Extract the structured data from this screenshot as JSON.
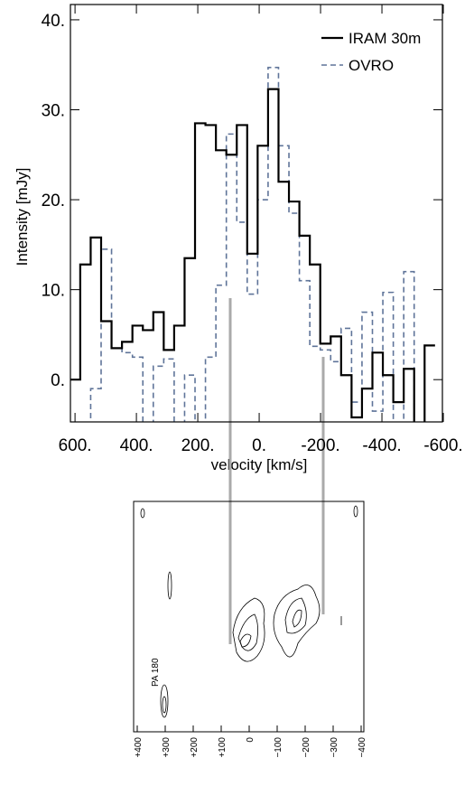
{
  "chart_data": {
    "type": "step",
    "xlabel": "velocity [km/s]",
    "ylabel": "Intensity [mJy]",
    "x": [
      600,
      566,
      532,
      498,
      464,
      430,
      396,
      362,
      328,
      294,
      260,
      226,
      192,
      158,
      124,
      90,
      56,
      22,
      -12,
      -46,
      -80,
      -114,
      -148,
      -182,
      -216,
      -250,
      -284,
      -318,
      -352,
      -386,
      -420,
      -454,
      -488,
      -522,
      -556
    ],
    "series": [
      {
        "name": "IRAM 30m",
        "color": "#000000",
        "dash": false,
        "values": [
          0,
          12.8,
          15.8,
          6.5,
          3.5,
          4.2,
          6,
          5.5,
          7.5,
          3.3,
          6,
          13.5,
          28.5,
          28.3,
          25.5,
          25,
          28.3,
          14,
          26,
          32.3,
          22,
          19.8,
          16,
          12.8,
          4,
          4.8,
          0.5,
          -4.2,
          -1,
          3,
          0.5,
          -2.5,
          1.2,
          -5,
          3.8
        ]
      },
      {
        "name": "OVRO",
        "color": "#5f7499",
        "dash": true,
        "values": [
          -8,
          -5,
          -1,
          14.5,
          3.5,
          3,
          2.5,
          -5,
          1.5,
          2.3,
          -5,
          0.5,
          -5,
          2.5,
          10.5,
          27.3,
          17.5,
          9.5,
          20,
          34.7,
          26,
          18.5,
          11,
          3.7,
          3.3,
          2,
          5.7,
          -2.5,
          7.5,
          -3.5,
          9.7,
          -5,
          12,
          -5,
          null
        ]
      }
    ],
    "xlim": [
      615,
      -597
    ],
    "ylim": [
      -4.7,
      41.7
    ],
    "xticks": [
      {
        "value": 600,
        "label": "600."
      },
      {
        "value": 400,
        "label": "400."
      },
      {
        "value": 200,
        "label": "200."
      },
      {
        "value": 0,
        "label": "0."
      },
      {
        "value": -200,
        "label": "-200."
      },
      {
        "value": -400,
        "label": "-400."
      },
      {
        "value": -600,
        "label": "-600."
      }
    ],
    "yticks": [
      {
        "value": 0,
        "label": "0."
      },
      {
        "value": 10,
        "label": "10."
      },
      {
        "value": 20,
        "label": "20."
      },
      {
        "value": 30,
        "label": "30."
      },
      {
        "value": 40,
        "label": "40."
      }
    ],
    "legend": "upper right",
    "grid": false
  },
  "pv_panel": {
    "xtick_labels": [
      "+400",
      "+300",
      "+200",
      "+100",
      "0",
      "−100",
      "−200",
      "−300",
      "−400"
    ],
    "label": "PA 180"
  }
}
